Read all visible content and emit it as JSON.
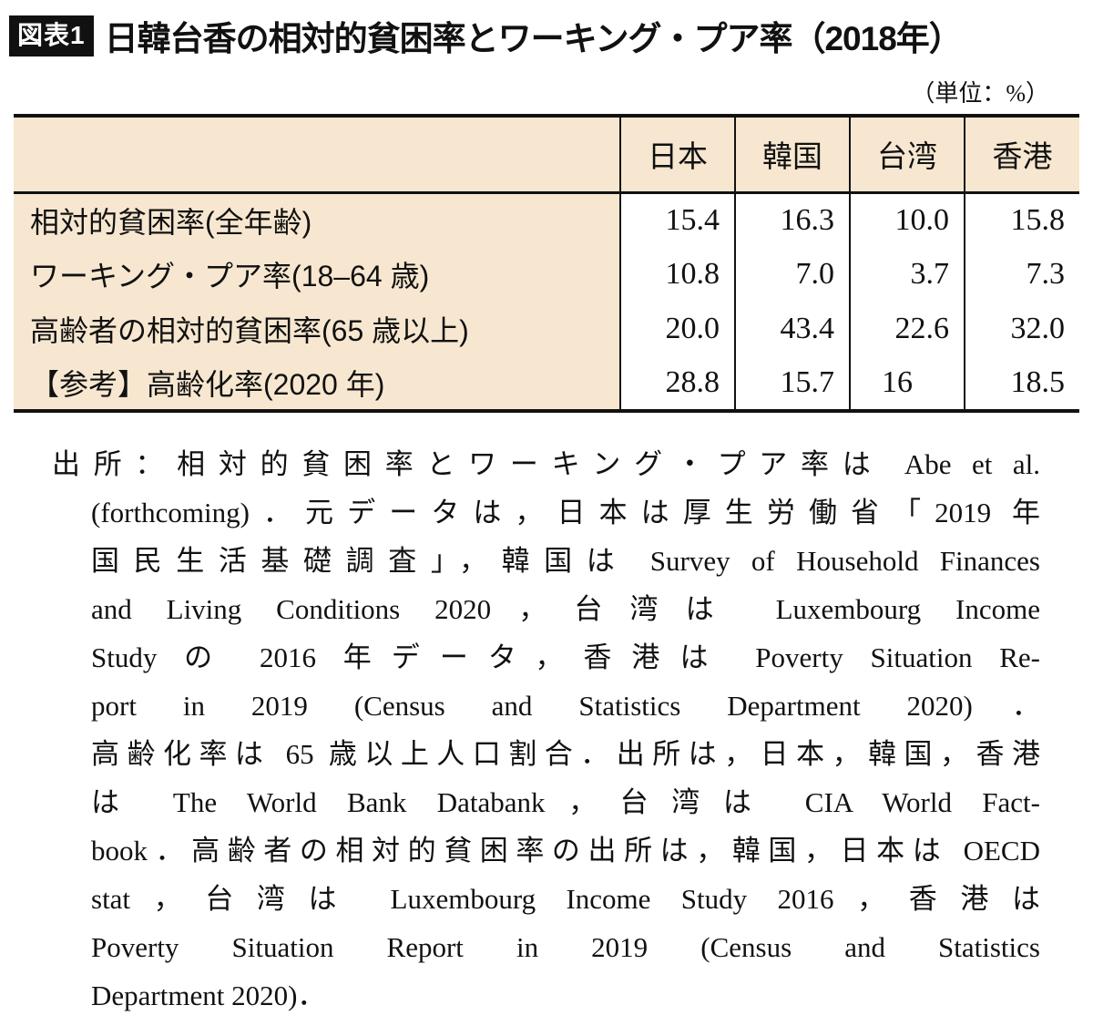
{
  "figure": {
    "tag": "図表1",
    "title": "日韓台香の相対的貧困率とワーキング・プア率（2018年）",
    "unit_note": "（単位：%）"
  },
  "chart_data": {
    "type": "table",
    "title": "日韓台香の相対的貧困率とワーキング・プア率（2018年）",
    "unit": "%",
    "columns": [
      "日本",
      "韓国",
      "台湾",
      "香港"
    ],
    "rows": [
      {
        "label": "相対的貧困率(全年齢)",
        "values": [
          "15.4",
          "16.3",
          "10.0",
          "15.8"
        ]
      },
      {
        "label": "ワーキング・プア率(18–64 歳)",
        "values": [
          "10.8",
          "7.0",
          "3.7",
          "7.3"
        ]
      },
      {
        "label": "高齢者の相対的貧困率(65 歳以上)",
        "values": [
          "20.0",
          "43.4",
          "22.6",
          "32.0"
        ]
      },
      {
        "label": "【参考】高齢化率(2020 年)",
        "values": [
          "28.8",
          "15.7",
          "16",
          "18.5"
        ]
      }
    ]
  },
  "source": {
    "lines": [
      "出所：相対的貧困率とワーキング・プア率は Abe et al.",
      "(forthcoming)．元データは，日本は厚生労働省「2019 年",
      "国民生活基礎調査」，韓国は Survey of Household Finances",
      "and Living Conditions 2020，台湾は Luxembourg Income",
      "Study の 2016 年データ，香港は Poverty Situation Re-",
      "port in 2019 (Census and Statistics Department 2020)．",
      "高齢化率は 65 歳以上人口割合．出所は，日本，韓国，香港",
      "は The World Bank Databank，台湾は CIA World Fact-",
      "book．高齢者の相対的貧困率の出所は，韓国，日本は OECD",
      "stat，台湾は Luxembourg Income Study 2016，香港は",
      "Poverty Situation Report in 2019 (Census and Statistics",
      "Department 2020)．"
    ]
  },
  "colors": {
    "table_bg": "#f7e7d0",
    "border": "#111111",
    "badge_bg": "#111111",
    "badge_text": "#ffffff"
  }
}
